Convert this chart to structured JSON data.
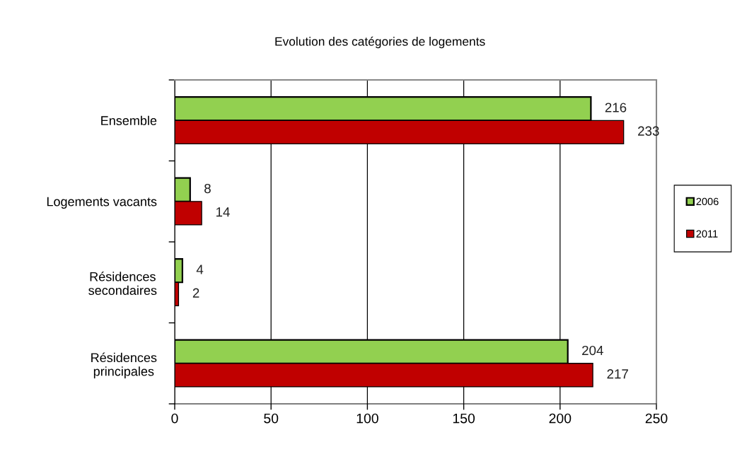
{
  "chart_data": {
    "type": "bar",
    "orientation": "horizontal",
    "title": "Evolution des catégories de logements",
    "categories": [
      "Ensemble",
      "Logements vacants",
      "Résidences secondaires",
      "Résidences principales"
    ],
    "series": [
      {
        "name": "2006",
        "color": "#92d050",
        "values": [
          216,
          8,
          4,
          204
        ]
      },
      {
        "name": "2011",
        "color": "#c00000",
        "values": [
          233,
          14,
          2,
          217
        ]
      }
    ],
    "xlim": [
      0,
      250
    ],
    "xticks": [
      0,
      50,
      100,
      150,
      200,
      250
    ],
    "grid": "x",
    "legend": "right",
    "data_labels": true
  }
}
